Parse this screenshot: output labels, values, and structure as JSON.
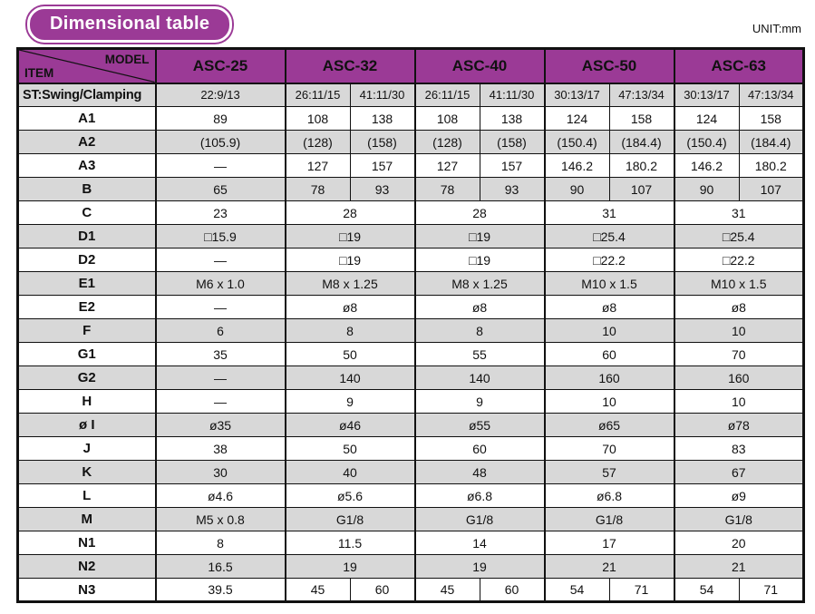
{
  "page": {
    "title_badge": "Dimensional table",
    "unit_label": "UNIT:mm"
  },
  "colors": {
    "header_purple": "#9b3a96",
    "row_shade": "#d8d8d8",
    "border": "#111111"
  },
  "header": {
    "model_label": "MODEL",
    "item_label": "ITEM",
    "models": [
      "ASC-25",
      "ASC-32",
      "ASC-40",
      "ASC-50",
      "ASC-63"
    ]
  },
  "table": {
    "rows": [
      {
        "item": "ST:Swing/Clamping",
        "cells": [
          "22:9/13",
          [
            "26:11/15",
            "41:11/30"
          ],
          [
            "26:11/15",
            "41:11/30"
          ],
          [
            "30:13/17",
            "47:13/34"
          ],
          [
            "30:13/17",
            "47:13/34"
          ]
        ]
      },
      {
        "item": "A1",
        "cells": [
          "89",
          [
            "108",
            "138"
          ],
          [
            "108",
            "138"
          ],
          [
            "124",
            "158"
          ],
          [
            "124",
            "158"
          ]
        ]
      },
      {
        "item": "A2",
        "cells": [
          "(105.9)",
          [
            "(128)",
            "(158)"
          ],
          [
            "(128)",
            "(158)"
          ],
          [
            "(150.4)",
            "(184.4)"
          ],
          [
            "(150.4)",
            "(184.4)"
          ]
        ]
      },
      {
        "item": "A3",
        "cells": [
          "—",
          [
            "127",
            "157"
          ],
          [
            "127",
            "157"
          ],
          [
            "146.2",
            "180.2"
          ],
          [
            "146.2",
            "180.2"
          ]
        ]
      },
      {
        "item": "B",
        "cells": [
          "65",
          [
            "78",
            "93"
          ],
          [
            "78",
            "93"
          ],
          [
            "90",
            "107"
          ],
          [
            "90",
            "107"
          ]
        ]
      },
      {
        "item": "C",
        "cells": [
          "23",
          "28",
          "28",
          "31",
          "31"
        ]
      },
      {
        "item": "D1",
        "cells": [
          "□15.9",
          "□19",
          "□19",
          "□25.4",
          "□25.4"
        ]
      },
      {
        "item": "D2",
        "cells": [
          "—",
          "□19",
          "□19",
          "□22.2",
          "□22.2"
        ]
      },
      {
        "item": "E1",
        "cells": [
          "M6 x 1.0",
          "M8 x 1.25",
          "M8 x 1.25",
          "M10 x 1.5",
          "M10 x 1.5"
        ]
      },
      {
        "item": "E2",
        "cells": [
          "—",
          "ø8",
          "ø8",
          "ø8",
          "ø8"
        ]
      },
      {
        "item": "F",
        "cells": [
          "6",
          "8",
          "8",
          "10",
          "10"
        ]
      },
      {
        "item": "G1",
        "cells": [
          "35",
          "50",
          "55",
          "60",
          "70"
        ]
      },
      {
        "item": "G2",
        "cells": [
          "—",
          "140",
          "140",
          "160",
          "160"
        ]
      },
      {
        "item": "H",
        "cells": [
          "—",
          "9",
          "9",
          "10",
          "10"
        ]
      },
      {
        "item": "ø I",
        "cells": [
          "ø35",
          "ø46",
          "ø55",
          "ø65",
          "ø78"
        ]
      },
      {
        "item": "J",
        "cells": [
          "38",
          "50",
          "60",
          "70",
          "83"
        ]
      },
      {
        "item": "K",
        "cells": [
          "30",
          "40",
          "48",
          "57",
          "67"
        ]
      },
      {
        "item": "L",
        "cells": [
          "ø4.6",
          "ø5.6",
          "ø6.8",
          "ø6.8",
          "ø9"
        ]
      },
      {
        "item": "M",
        "cells": [
          "M5 x 0.8",
          "G1/8",
          "G1/8",
          "G1/8",
          "G1/8"
        ]
      },
      {
        "item": "N1",
        "cells": [
          "8",
          "11.5",
          "14",
          "17",
          "20"
        ]
      },
      {
        "item": "N2",
        "cells": [
          "16.5",
          "19",
          "19",
          "21",
          "21"
        ]
      },
      {
        "item": "N3",
        "cells": [
          "39.5",
          [
            "45",
            "60"
          ],
          [
            "45",
            "60"
          ],
          [
            "54",
            "71"
          ],
          [
            "54",
            "71"
          ]
        ]
      }
    ]
  }
}
